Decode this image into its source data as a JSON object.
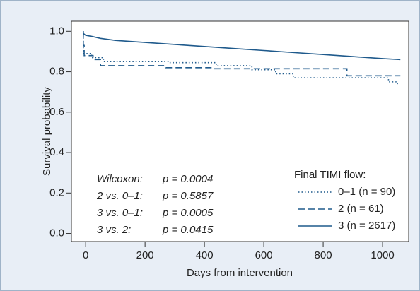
{
  "chart_data": {
    "type": "line",
    "x_label": "Days from intervention",
    "y_label": "Survival probability",
    "xlim": [
      -48,
      1088
    ],
    "ylim": [
      -0.04,
      1.05
    ],
    "xticks": [
      0,
      200,
      400,
      600,
      800,
      1000
    ],
    "yticks": [
      {
        "value": 0,
        "label": "0.0"
      },
      0.2,
      0.4,
      0.6,
      0.8,
      {
        "value": 1,
        "label": "1.0"
      }
    ],
    "legend_title": "Final TIMI flow:",
    "legend": "lower right",
    "series": [
      {
        "name": "0–1 (n = 90)",
        "color": "#1f5a8c",
        "dash": "dotted",
        "x": [
          -8,
          -8,
          20,
          20,
          60,
          60,
          280,
          280,
          440,
          440,
          560,
          560,
          640,
          640,
          700,
          700,
          1020,
          1020,
          1050,
          1050
        ],
        "values": [
          1.0,
          0.89,
          0.89,
          0.87,
          0.87,
          0.85,
          0.85,
          0.845,
          0.845,
          0.83,
          0.83,
          0.81,
          0.81,
          0.79,
          0.79,
          0.77,
          0.77,
          0.75,
          0.75,
          0.73
        ]
      },
      {
        "name": "2 (n = 61)",
        "color": "#1f5a8c",
        "dash": "dashed",
        "x": [
          -8,
          -8,
          -5,
          -5,
          25,
          25,
          50,
          50,
          270,
          270,
          430,
          430,
          880,
          880,
          1060
        ],
        "values": [
          1.0,
          0.93,
          0.93,
          0.88,
          0.88,
          0.86,
          0.86,
          0.83,
          0.83,
          0.82,
          0.82,
          0.815,
          0.815,
          0.78,
          0.78
        ]
      },
      {
        "name": "3 (n = 2617)",
        "color": "#1f5a8c",
        "dash": "solid",
        "x": [
          -8,
          -8,
          0,
          20,
          50,
          100,
          200,
          300,
          400,
          500,
          600,
          700,
          800,
          900,
          1000,
          1060
        ],
        "values": [
          1.0,
          0.99,
          0.98,
          0.975,
          0.965,
          0.955,
          0.945,
          0.935,
          0.925,
          0.915,
          0.905,
          0.895,
          0.885,
          0.875,
          0.865,
          0.86
        ]
      }
    ],
    "annotations": [
      {
        "label": "Wilcoxon:",
        "text": "p = 0.0004"
      },
      {
        "label": "2 vs. 0–1:",
        "text": "p = 0.5857"
      },
      {
        "label": "3 vs. 0–1:",
        "text": "p = 0.0005"
      },
      {
        "label": "3 vs. 2:",
        "text": "p = 0.0415"
      }
    ]
  }
}
